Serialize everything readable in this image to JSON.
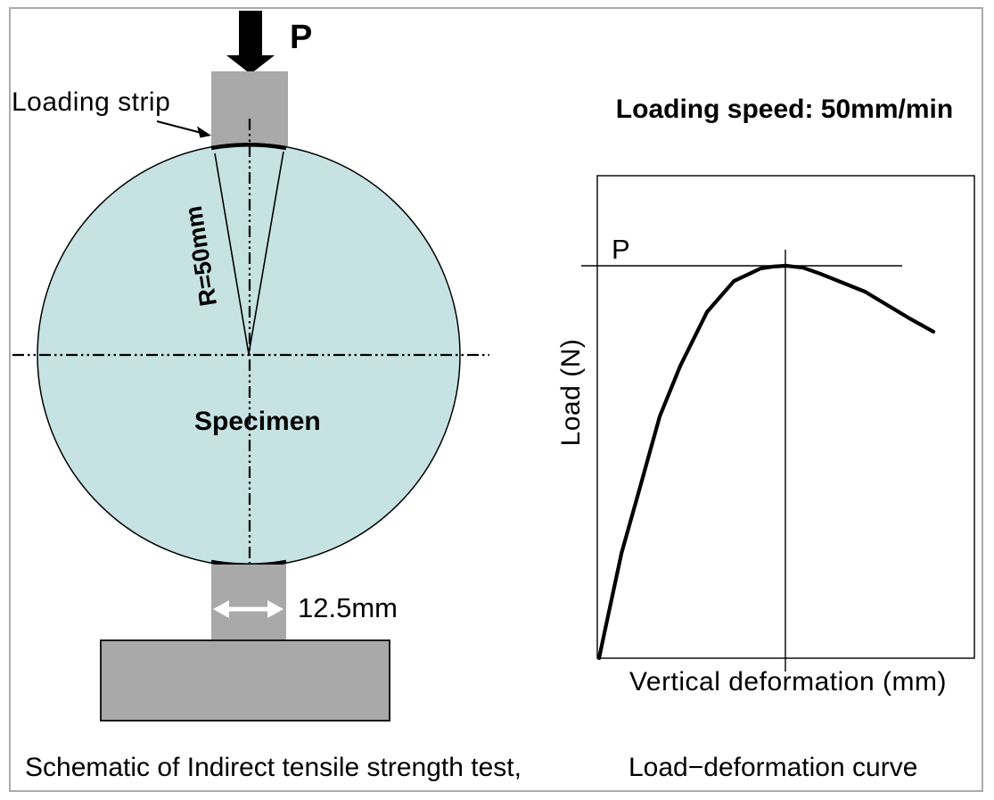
{
  "schematic": {
    "force_label": "P",
    "loading_strip_label": "Loading strip",
    "radius_label": "R=50mm",
    "specimen_label": "Specimen",
    "strip_width_label": "12.5mm",
    "caption": "Schematic of Indirect tensile strength test,"
  },
  "graph": {
    "heading": "Loading speed: 50mm/min",
    "peak_load_label": "P",
    "y_axis_label": "Load (N)",
    "x_axis_label": "Vertical deformation (mm)",
    "caption": "Load−deformation curve"
  },
  "colors": {
    "specimen_fill": "#c6e2e3",
    "platen_gray": "#a9a9a9",
    "ink": "#000000",
    "frame_border": "#ababab"
  },
  "chart_data": {
    "type": "line",
    "title": "Load−deformation curve",
    "xlabel": "Vertical deformation (mm)",
    "ylabel": "Load (N)",
    "x_axis_numeric": false,
    "y_axis_numeric": false,
    "grid": false,
    "legend_position": "none",
    "annotations": [
      {
        "text": "P",
        "meaning": "peak load level marked by a horizontal reference line meeting the curve apex"
      },
      {
        "text": "Loading speed: 50mm/min",
        "meaning": "test condition stated above the plot"
      }
    ],
    "series": [
      {
        "name": "load-deformation response",
        "points_normalized": [
          [
            0.0,
            0.0
          ],
          [
            0.019,
            0.086
          ],
          [
            0.06,
            0.268
          ],
          [
            0.107,
            0.427
          ],
          [
            0.162,
            0.616
          ],
          [
            0.217,
            0.745
          ],
          [
            0.288,
            0.882
          ],
          [
            0.36,
            0.961
          ],
          [
            0.431,
            0.993
          ],
          [
            0.465,
            0.998
          ],
          [
            0.5,
            1.0
          ],
          [
            0.545,
            0.995
          ],
          [
            0.59,
            0.98
          ],
          [
            0.71,
            0.934
          ],
          [
            0.829,
            0.866
          ],
          [
            0.893,
            0.832
          ]
        ],
        "peak_at_normalized_x": 0.5
      }
    ]
  }
}
